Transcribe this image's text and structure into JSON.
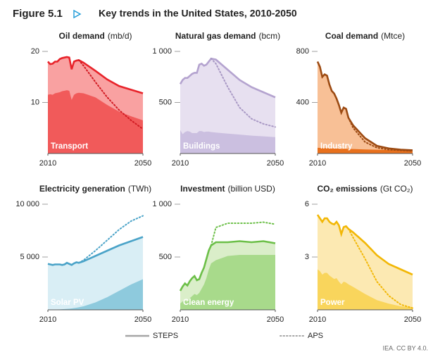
{
  "figure": {
    "label": "Figure 5.1",
    "title": "Key trends in the United States, 2010-2050",
    "source": "IEA. CC BY 4.0."
  },
  "legend": [
    {
      "name": "STEPS",
      "line": "solid",
      "color": "#a6a6a6"
    },
    {
      "name": "APS",
      "line": "dotted",
      "color": "#a6a6a6"
    }
  ],
  "chart_data": [
    {
      "type": "area",
      "title": "Oil demand",
      "unit": "(mb/d)",
      "x": [
        2010,
        2011,
        2012,
        2013,
        2014,
        2015,
        2016,
        2017,
        2018,
        2019,
        2020,
        2021,
        2022,
        2023,
        2025,
        2030,
        2035,
        2040,
        2045,
        2050
      ],
      "xlim": [
        2010,
        2050
      ],
      "xticks": [
        2010,
        2050
      ],
      "ylim": [
        0,
        20
      ],
      "yticks": [
        10,
        20
      ],
      "series": [
        {
          "line": "solid",
          "color": "#e8232a",
          "fill": "#f9a1a1",
          "values": [
            18.0,
            17.5,
            17.6,
            18.0,
            18.0,
            18.5,
            18.7,
            18.8,
            18.9,
            18.8,
            16.5,
            18.0,
            18.2,
            18.3,
            17.8,
            16.2,
            14.5,
            13.2,
            12.5,
            11.8
          ]
        },
        {
          "line": "dotted",
          "color": "#d11a22",
          "values": [
            null,
            null,
            null,
            null,
            null,
            null,
            null,
            null,
            null,
            null,
            null,
            null,
            null,
            18.3,
            17.2,
            14.0,
            11.0,
            8.5,
            6.5,
            4.8
          ]
        },
        {
          "name": "Transport",
          "color": "#f15a5a",
          "values": [
            11.5,
            11.6,
            11.5,
            11.8,
            11.9,
            12.0,
            12.2,
            12.3,
            12.4,
            12.3,
            10.5,
            11.5,
            11.8,
            11.9,
            11.8,
            11.0,
            9.5,
            8.2,
            7.3,
            6.5
          ]
        }
      ]
    },
    {
      "type": "area",
      "title": "Natural gas demand",
      "unit": "(bcm)",
      "x": [
        2010,
        2011,
        2012,
        2013,
        2014,
        2015,
        2016,
        2017,
        2018,
        2019,
        2020,
        2021,
        2022,
        2023,
        2025,
        2030,
        2035,
        2040,
        2045,
        2050
      ],
      "xlim": [
        2010,
        2050
      ],
      "xticks": [
        2010,
        2050
      ],
      "ylim": [
        0,
        1000
      ],
      "yticks": [
        500,
        {
          "value": 1000,
          "label": "1 000"
        }
      ],
      "series": [
        {
          "line": "solid",
          "color": "#b4a3cf",
          "fill": "#e7e0f0",
          "values": [
            680,
            720,
            740,
            740,
            760,
            780,
            790,
            790,
            870,
            880,
            860,
            870,
            900,
            930,
            920,
            820,
            720,
            650,
            600,
            550
          ]
        },
        {
          "line": "dotted",
          "color": "#a898c4",
          "values": [
            null,
            null,
            null,
            null,
            null,
            null,
            null,
            null,
            null,
            null,
            null,
            null,
            null,
            930,
            880,
            650,
            450,
            340,
            290,
            260
          ]
        },
        {
          "name": "Buildings",
          "color": "#cbbfe0",
          "values": [
            230,
            190,
            210,
            220,
            215,
            200,
            200,
            200,
            220,
            220,
            210,
            215,
            215,
            210,
            205,
            195,
            185,
            175,
            168,
            160
          ]
        }
      ]
    },
    {
      "type": "area",
      "title": "Coal demand",
      "unit": "(Mtce)",
      "x": [
        2010,
        2011,
        2012,
        2013,
        2014,
        2015,
        2016,
        2017,
        2018,
        2019,
        2020,
        2021,
        2022,
        2023,
        2025,
        2030,
        2035,
        2040,
        2045,
        2050
      ],
      "xlim": [
        2010,
        2050
      ],
      "xticks": [
        2010,
        2050
      ],
      "ylim": [
        0,
        800
      ],
      "yticks": [
        400,
        800
      ],
      "series": [
        {
          "line": "solid",
          "color": "#9c4a12",
          "fill": "#f8c096",
          "values": [
            720,
            680,
            600,
            620,
            610,
            540,
            490,
            470,
            430,
            380,
            320,
            360,
            350,
            280,
            220,
            120,
            60,
            40,
            30,
            25
          ]
        },
        {
          "line": "dotted",
          "color": "#9c4a12",
          "values": [
            null,
            null,
            null,
            null,
            null,
            null,
            null,
            null,
            null,
            null,
            null,
            null,
            null,
            280,
            200,
            90,
            45,
            30,
            25,
            20
          ]
        },
        {
          "name": "Industry",
          "color": "#e8701c",
          "values": [
            45,
            44,
            43,
            43,
            42,
            41,
            40,
            40,
            39,
            38,
            36,
            37,
            37,
            36,
            35,
            32,
            30,
            28,
            26,
            25
          ]
        }
      ]
    },
    {
      "type": "area",
      "title": "Electricity generation",
      "unit": "(TWh)",
      "x": [
        2010,
        2011,
        2012,
        2013,
        2014,
        2015,
        2016,
        2017,
        2018,
        2019,
        2020,
        2021,
        2022,
        2023,
        2025,
        2030,
        2035,
        2040,
        2045,
        2050
      ],
      "xlim": [
        2010,
        2050
      ],
      "xticks": [
        2010,
        2050
      ],
      "ylim": [
        0,
        10000
      ],
      "yticks": [
        {
          "value": 5000,
          "label": "5 000"
        },
        {
          "value": 10000,
          "label": "10 000"
        }
      ],
      "series": [
        {
          "line": "solid",
          "color": "#4aa3c8",
          "fill": "#d9eef5",
          "values": [
            4350,
            4300,
            4250,
            4300,
            4300,
            4300,
            4250,
            4300,
            4450,
            4350,
            4250,
            4400,
            4500,
            4450,
            4600,
            5100,
            5600,
            6100,
            6500,
            6900
          ]
        },
        {
          "line": "dotted",
          "color": "#4aa3c8",
          "values": [
            null,
            null,
            null,
            null,
            null,
            null,
            null,
            null,
            null,
            null,
            null,
            null,
            null,
            4450,
            4700,
            5600,
            6600,
            7600,
            8400,
            8900
          ]
        },
        {
          "name": "Solar PV",
          "color": "#8ecadd",
          "values": [
            5,
            10,
            15,
            20,
            30,
            40,
            55,
            75,
            95,
            110,
            130,
            165,
            200,
            240,
            330,
            700,
            1200,
            1800,
            2400,
            2900
          ]
        }
      ]
    },
    {
      "type": "area",
      "title": "Investment",
      "unit": "(billion USD)",
      "x": [
        2010,
        2011,
        2012,
        2013,
        2014,
        2015,
        2016,
        2017,
        2018,
        2019,
        2020,
        2021,
        2022,
        2023,
        2025,
        2030,
        2035,
        2040,
        2045,
        2050
      ],
      "xlim": [
        2010,
        2050
      ],
      "xticks": [
        2010,
        2050
      ],
      "ylim": [
        0,
        1000
      ],
      "yticks": [
        500,
        {
          "value": 1000,
          "label": "1 000"
        }
      ],
      "series": [
        {
          "line": "solid",
          "color": "#6cbf48",
          "fill": "#daeec9",
          "values": [
            180,
            220,
            250,
            230,
            270,
            300,
            320,
            280,
            290,
            350,
            400,
            480,
            560,
            610,
            640,
            640,
            650,
            640,
            650,
            630
          ]
        },
        {
          "line": "dotted",
          "color": "#6cbf48",
          "values": [
            null,
            null,
            null,
            null,
            null,
            null,
            null,
            null,
            null,
            null,
            null,
            null,
            null,
            610,
            780,
            820,
            820,
            820,
            830,
            810
          ]
        },
        {
          "name": "Clean energy",
          "color": "#a8da8b",
          "values": [
            60,
            80,
            90,
            75,
            110,
            130,
            150,
            140,
            160,
            200,
            240,
            300,
            380,
            440,
            470,
            510,
            520,
            520,
            520,
            520
          ]
        }
      ]
    },
    {
      "type": "area",
      "title": "CO₂ emissions",
      "unit": "(Gt CO₂)",
      "x": [
        2010,
        2011,
        2012,
        2013,
        2014,
        2015,
        2016,
        2017,
        2018,
        2019,
        2020,
        2021,
        2022,
        2023,
        2025,
        2030,
        2035,
        2040,
        2045,
        2050
      ],
      "xlim": [
        2010,
        2050
      ],
      "xticks": [
        2010,
        2050
      ],
      "ylim": [
        0,
        6
      ],
      "yticks": [
        3,
        6
      ],
      "series": [
        {
          "line": "solid",
          "color": "#f2b705",
          "fill": "#fce9b2",
          "values": [
            5.4,
            5.2,
            5.0,
            5.2,
            5.2,
            5.0,
            4.9,
            4.85,
            5.0,
            4.8,
            4.3,
            4.7,
            4.75,
            4.6,
            4.4,
            3.8,
            3.1,
            2.6,
            2.3,
            2.0
          ]
        },
        {
          "line": "dotted",
          "color": "#f2b705",
          "values": [
            null,
            null,
            null,
            null,
            null,
            null,
            null,
            null,
            null,
            null,
            null,
            null,
            null,
            4.6,
            4.1,
            2.9,
            1.6,
            0.8,
            0.3,
            0.1
          ]
        },
        {
          "name": "Power",
          "color": "#f9d55c",
          "values": [
            2.3,
            2.2,
            2.0,
            2.1,
            2.1,
            1.95,
            1.85,
            1.75,
            1.8,
            1.6,
            1.45,
            1.6,
            1.55,
            1.45,
            1.3,
            0.9,
            0.55,
            0.35,
            0.2,
            0.15
          ]
        }
      ]
    }
  ]
}
